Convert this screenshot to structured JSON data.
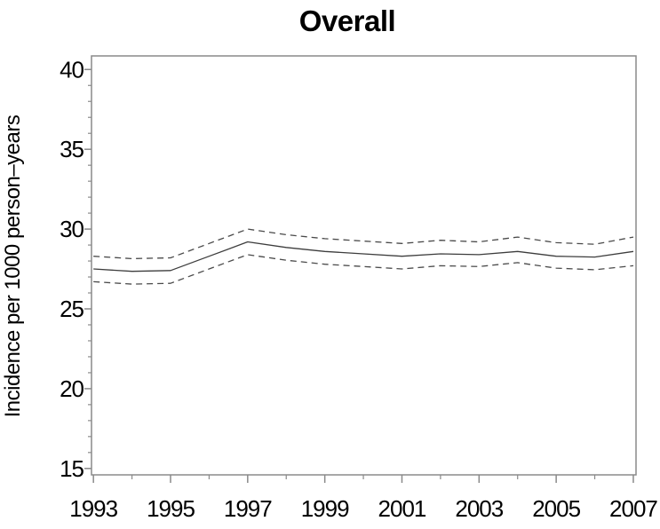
{
  "title": "Overall",
  "chart_data": {
    "type": "line",
    "title": "Overall",
    "xlabel": "",
    "ylabel": "Incidence per 1000 person–years",
    "x": [
      1993,
      1994,
      1995,
      1996,
      1997,
      1998,
      1999,
      2000,
      2001,
      2002,
      2003,
      2004,
      2005,
      2006,
      2007
    ],
    "series": [
      {
        "name": "incidence-estimate",
        "style": "solid",
        "values": [
          27.5,
          27.35,
          27.4,
          28.3,
          29.2,
          28.85,
          28.6,
          28.45,
          28.3,
          28.45,
          28.4,
          28.6,
          28.3,
          28.25,
          28.6
        ]
      },
      {
        "name": "upper-confidence-band",
        "style": "dashed",
        "values": [
          28.3,
          28.15,
          28.2,
          29.1,
          30.0,
          29.65,
          29.4,
          29.25,
          29.1,
          29.3,
          29.2,
          29.5,
          29.15,
          29.05,
          29.5
        ]
      },
      {
        "name": "lower-confidence-band",
        "style": "dashed",
        "values": [
          26.7,
          26.55,
          26.6,
          27.5,
          28.4,
          28.05,
          27.8,
          27.65,
          27.5,
          27.7,
          27.65,
          27.9,
          27.55,
          27.45,
          27.7
        ]
      }
    ],
    "xticks_major": [
      1993,
      1995,
      1997,
      1999,
      2001,
      2003,
      2005,
      2007
    ],
    "xticks_minor": [
      1994,
      1996,
      1998,
      2000,
      2002,
      2004,
      2006
    ],
    "yticks_major": [
      15,
      20,
      25,
      30,
      35,
      40
    ],
    "yticks_minor": [
      16,
      17,
      18,
      19,
      21,
      22,
      23,
      24,
      26,
      27,
      28,
      29,
      31,
      32,
      33,
      34,
      36,
      37,
      38,
      39
    ],
    "xlim": [
      1992.95,
      2007.07
    ],
    "ylim": [
      14.6,
      40.85
    ],
    "grid": false,
    "legend": "none",
    "colors": {
      "line": "#3d3d3d",
      "dashed_line": "#4a4a4a",
      "axis": "#8a8a8a",
      "text": "#000000",
      "background": "#ffffff"
    }
  }
}
